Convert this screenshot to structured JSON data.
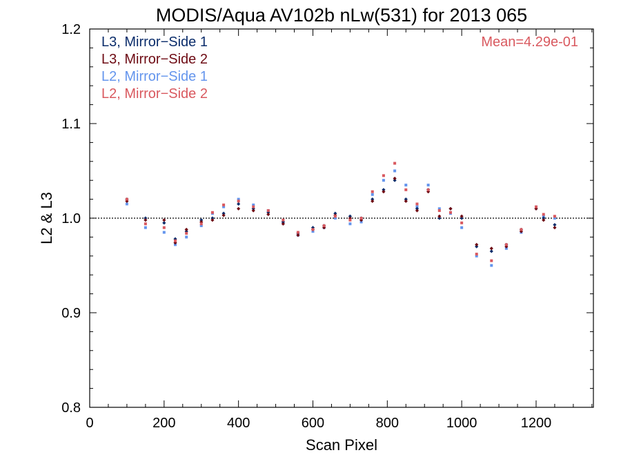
{
  "chart_data": {
    "type": "scatter",
    "title": "MODIS/Aqua AV102b nLw(531) for 2013 065",
    "xlabel": "Scan Pixel",
    "ylabel": "L2 & L3",
    "xlim": [
      0,
      1354
    ],
    "ylim": [
      0.8,
      1.2
    ],
    "x_ticks": [
      "0",
      "200",
      "400",
      "600",
      "800",
      "1000",
      "1200"
    ],
    "y_ticks": [
      "0.8",
      "0.9",
      "1.0",
      "1.1",
      "1.2"
    ],
    "reference_line": 1.0,
    "annotation": "Mean=4.29e-01",
    "annotation_color": "#d9595f",
    "legend_position": "top-left",
    "series": [
      {
        "name": "L3, Mirror−Side 1",
        "color": "#0b2d6b",
        "x": [
          100,
          150,
          200,
          230,
          260,
          300,
          330,
          360,
          400,
          440,
          480,
          520,
          560,
          600,
          630,
          660,
          700,
          730,
          760,
          790,
          820,
          850,
          880,
          910,
          940,
          970,
          1000,
          1040,
          1080,
          1120,
          1160,
          1200,
          1220,
          1250
        ],
        "y": [
          1.02,
          1.0,
          0.995,
          0.978,
          0.986,
          0.998,
          1.0,
          1.005,
          1.015,
          1.01,
          1.006,
          0.996,
          0.984,
          0.99,
          0.992,
          1.005,
          1.002,
          1.0,
          1.02,
          1.03,
          1.04,
          1.02,
          1.01,
          1.03,
          1.0,
          1.01,
          1.0,
          0.97,
          0.965,
          0.972,
          0.988,
          1.01,
          1.0,
          0.993
        ]
      },
      {
        "name": "L3, Mirror−Side 2",
        "color": "#6e0b14",
        "x": [
          100,
          150,
          200,
          230,
          260,
          300,
          330,
          360,
          400,
          440,
          480,
          520,
          560,
          600,
          630,
          660,
          700,
          730,
          760,
          790,
          820,
          850,
          880,
          910,
          940,
          970,
          1000,
          1040,
          1080,
          1120,
          1160,
          1200,
          1220,
          1250
        ],
        "y": [
          1.018,
          0.998,
          0.998,
          0.974,
          0.988,
          0.996,
          0.998,
          1.003,
          1.01,
          1.008,
          1.004,
          0.994,
          0.982,
          0.988,
          0.99,
          1.003,
          1.0,
          0.998,
          1.018,
          1.028,
          1.042,
          1.018,
          1.008,
          1.028,
          1.002,
          1.01,
          1.002,
          0.972,
          0.968,
          0.97,
          0.986,
          1.01,
          0.998,
          0.99
        ]
      },
      {
        "name": "L2, Mirror−Side 1",
        "color": "#6495ed",
        "x": [
          100,
          150,
          200,
          230,
          260,
          300,
          330,
          360,
          400,
          440,
          480,
          520,
          560,
          600,
          630,
          660,
          700,
          730,
          760,
          790,
          820,
          850,
          880,
          910,
          940,
          970,
          1000,
          1040,
          1080,
          1120,
          1160,
          1200,
          1220,
          1250
        ],
        "y": [
          1.015,
          0.99,
          0.985,
          0.972,
          0.98,
          0.992,
          1.005,
          1.012,
          1.02,
          1.014,
          1.008,
          0.996,
          0.982,
          0.986,
          0.99,
          1.0,
          0.994,
          0.996,
          1.025,
          1.04,
          1.05,
          1.035,
          1.012,
          1.035,
          1.01,
          1.005,
          0.99,
          0.96,
          0.95,
          0.968,
          0.985,
          1.012,
          1.002,
          1.0
        ]
      },
      {
        "name": "L2, Mirror−Side 2",
        "color": "#d9595f",
        "x": [
          100,
          150,
          200,
          230,
          260,
          300,
          330,
          360,
          400,
          440,
          480,
          520,
          560,
          600,
          630,
          660,
          700,
          730,
          760,
          790,
          820,
          850,
          880,
          910,
          940,
          970,
          1000,
          1040,
          1080,
          1120,
          1160,
          1200,
          1220,
          1250
        ],
        "y": [
          1.02,
          0.994,
          0.99,
          0.976,
          0.984,
          0.994,
          1.006,
          1.014,
          1.018,
          1.012,
          1.008,
          0.998,
          0.985,
          0.988,
          0.992,
          1.002,
          0.998,
          1.0,
          1.028,
          1.045,
          1.058,
          1.03,
          1.015,
          1.03,
          1.008,
          1.006,
          0.995,
          0.962,
          0.955,
          0.972,
          0.988,
          1.012,
          1.004,
          1.002
        ]
      }
    ]
  }
}
